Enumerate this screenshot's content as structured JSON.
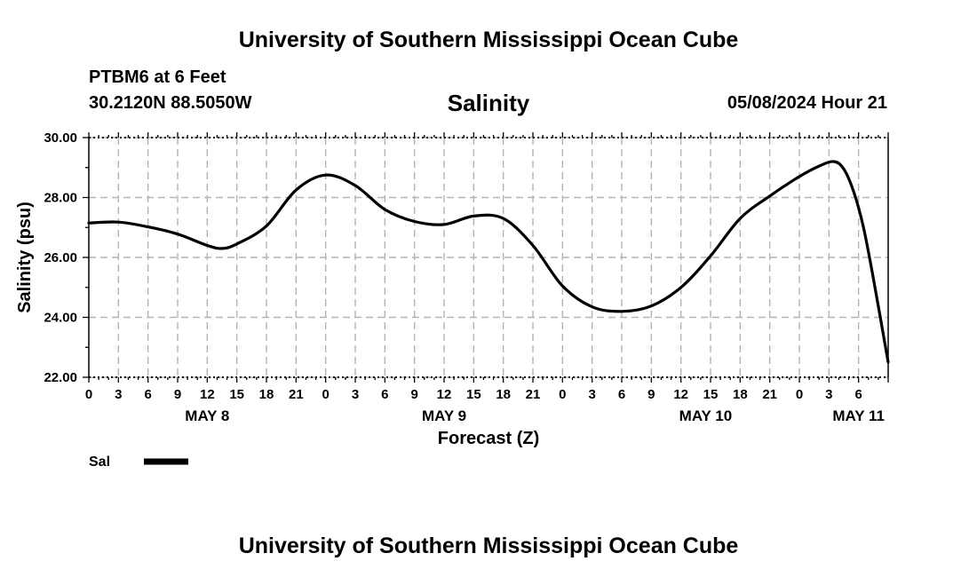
{
  "header": {
    "title": "University of Southern Mississippi Ocean Cube",
    "station": "PTBM6 at 6 Feet",
    "coords": "30.2120N  88.5050W",
    "datetime": "05/08/2024 Hour 21"
  },
  "footer": {
    "title": "University of Southern Mississippi Ocean Cube"
  },
  "chart_data": {
    "type": "line",
    "title": "Salinity",
    "xlabel": "Forecast (Z)",
    "ylabel": "Salinity (psu)",
    "ylim": [
      22,
      30
    ],
    "xlim": [
      0,
      81
    ],
    "x_unit": "hours since 00Z May 8",
    "x_tick_labels": [
      "0",
      "3",
      "6",
      "9",
      "12",
      "15",
      "18",
      "21",
      "0",
      "3",
      "6",
      "9",
      "12",
      "15",
      "18",
      "21",
      "0",
      "3",
      "6",
      "9",
      "12",
      "15",
      "18",
      "21",
      "0",
      "3",
      "6"
    ],
    "y_ticks": [
      22,
      24,
      26,
      28,
      30
    ],
    "y_tick_labels": [
      "22.00",
      "24.00",
      "26.00",
      "28.00",
      "30.00"
    ],
    "date_labels": [
      {
        "label": "MAY 8",
        "hour": 12
      },
      {
        "label": "MAY 9",
        "hour": 36
      },
      {
        "label": "MAY 10",
        "hour": 62.5
      },
      {
        "label": "MAY 11",
        "hour": 78
      }
    ],
    "grid": true,
    "legend": [
      {
        "name": "Sal",
        "color": "#000000"
      }
    ],
    "series": [
      {
        "name": "Sal",
        "color": "#000000",
        "points": [
          [
            0,
            27.15
          ],
          [
            3,
            27.18
          ],
          [
            6,
            27.02
          ],
          [
            9,
            26.78
          ],
          [
            12,
            26.4
          ],
          [
            13.5,
            26.3
          ],
          [
            15,
            26.45
          ],
          [
            18,
            27.05
          ],
          [
            21,
            28.25
          ],
          [
            24,
            28.75
          ],
          [
            27,
            28.4
          ],
          [
            30,
            27.6
          ],
          [
            33,
            27.2
          ],
          [
            36,
            27.1
          ],
          [
            39,
            27.38
          ],
          [
            42,
            27.3
          ],
          [
            45,
            26.4
          ],
          [
            48,
            25.05
          ],
          [
            51,
            24.35
          ],
          [
            54,
            24.2
          ],
          [
            57,
            24.38
          ],
          [
            60,
            25.0
          ],
          [
            63,
            26.05
          ],
          [
            66,
            27.3
          ],
          [
            69,
            28.05
          ],
          [
            72,
            28.7
          ],
          [
            74,
            29.05
          ],
          [
            75.5,
            29.2
          ],
          [
            76.5,
            28.95
          ],
          [
            77.5,
            28.2
          ],
          [
            78.5,
            27.0
          ],
          [
            79.5,
            25.3
          ],
          [
            81,
            22.5
          ]
        ]
      }
    ]
  }
}
